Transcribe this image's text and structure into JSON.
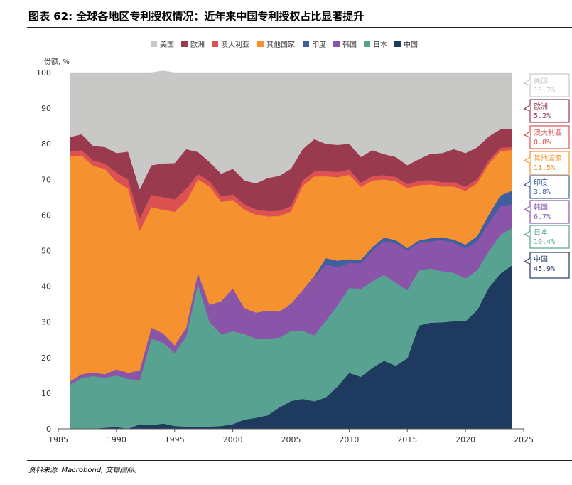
{
  "title": "图表 62: 全球各地区专利授权情况：近年来中国专利授权占比显著提升",
  "source": "资料来源: Macrobond, 交银国际。",
  "chart_data": {
    "type": "area",
    "stacked": true,
    "ylabel": "份额, %",
    "xlim": [
      1985,
      2025
    ],
    "ylim": [
      0,
      100
    ],
    "x_ticks": [
      "1985",
      "1990",
      "1995",
      "2000",
      "2005",
      "2010",
      "2015",
      "2020",
      "2025"
    ],
    "y_ticks": [
      "0",
      "10",
      "20",
      "30",
      "40",
      "50",
      "60",
      "70",
      "80",
      "90",
      "100"
    ],
    "legend_position": "top",
    "x": [
      1986,
      1987,
      1988,
      1989,
      1990,
      1991,
      1992,
      1993,
      1994,
      1995,
      1996,
      1997,
      1998,
      1999,
      2000,
      2001,
      2002,
      2003,
      2004,
      2005,
      2006,
      2007,
      2008,
      2009,
      2010,
      2011,
      2012,
      2013,
      2014,
      2015,
      2016,
      2017,
      2018,
      2019,
      2020,
      2021,
      2022,
      2023,
      2024
    ],
    "series": [
      {
        "name": "中国",
        "color": "#1f3a5f",
        "values": [
          0,
          0,
          0,
          0.3,
          0.5,
          0,
          1.3,
          1,
          1.5,
          0.8,
          0.6,
          0.5,
          0.6,
          0.8,
          1.3,
          2.6,
          3.1,
          3.8,
          6,
          7.8,
          8.4,
          7.7,
          8.8,
          11.9,
          15.7,
          14.6,
          17.1,
          19.1,
          17.7,
          19.8,
          29,
          29.8,
          29.9,
          30.2,
          30.2,
          33.3,
          39.6,
          43.6,
          45.9
        ]
      },
      {
        "name": "日本",
        "color": "#58a291",
        "values": [
          12.3,
          14.3,
          14.8,
          14,
          14.5,
          14,
          12.3,
          24.3,
          22.7,
          20.5,
          25.3,
          40.2,
          29.4,
          25.7,
          26.1,
          24,
          22.2,
          21.5,
          19.6,
          19.7,
          19.2,
          18.5,
          21.5,
          22.8,
          23.8,
          24.7,
          24.3,
          24.1,
          23.3,
          19.1,
          15.5,
          15.2,
          14.3,
          13.6,
          12,
          11.2,
          10.2,
          10.9,
          10.4
        ]
      },
      {
        "name": "韩国",
        "color": "#8a55a8",
        "values": [
          1,
          1,
          1,
          1,
          1.7,
          1.7,
          2.8,
          3.1,
          2.6,
          2.1,
          2.5,
          3,
          4.8,
          9.3,
          12,
          7.3,
          7.3,
          7.9,
          7.3,
          7.6,
          11.3,
          16.3,
          15.9,
          10.5,
          7.1,
          7.1,
          8.6,
          9.5,
          11,
          11.2,
          7.7,
          7.6,
          8.8,
          8.4,
          8.4,
          8,
          8,
          8,
          6.7
        ]
      },
      {
        "name": "印度",
        "color": "#3f5f9e",
        "values": [
          0,
          0,
          0,
          0,
          0,
          0,
          0,
          0,
          0,
          0,
          0,
          0,
          0,
          0,
          0,
          0,
          0,
          0,
          0,
          0,
          0,
          0.4,
          1.7,
          2,
          1,
          1,
          1,
          1,
          1,
          0.6,
          0.7,
          0.9,
          0.8,
          0.9,
          1.1,
          1.6,
          2.3,
          3,
          3.8
        ]
      },
      {
        "name": "其他国家",
        "color": "#f5922f",
        "values": [
          63.2,
          61.4,
          58,
          57.7,
          52.7,
          51.7,
          39.1,
          33.8,
          34.7,
          37.5,
          35.5,
          26.3,
          33.2,
          27.9,
          24.9,
          27.6,
          27.5,
          26.4,
          26.8,
          25.9,
          29.3,
          27.9,
          23,
          23.4,
          23.7,
          20.5,
          18.7,
          16.3,
          16.5,
          16.8,
          15.5,
          15.1,
          14.2,
          14.9,
          15.1,
          14.8,
          14.3,
          12.5,
          11.5
        ]
      },
      {
        "name": "澳大利亚",
        "color": "#dc5252",
        "values": [
          1.5,
          1.5,
          1.5,
          1.5,
          2.5,
          2.5,
          3.5,
          3.5,
          3.5,
          3.5,
          3.5,
          1.5,
          1.5,
          1.5,
          1.5,
          1.5,
          1.5,
          1.5,
          1.5,
          1.5,
          1.5,
          1.5,
          1.5,
          1.5,
          1.5,
          1.2,
          1.2,
          1.2,
          1.2,
          1.2,
          1.2,
          1.2,
          1.2,
          1.2,
          1.2,
          1.1,
          1,
          0.9,
          0.8
        ]
      },
      {
        "name": "欧洲",
        "color": "#9a3a4f",
        "values": [
          3.9,
          4.5,
          4.1,
          4.6,
          5.5,
          7.9,
          8.2,
          8.3,
          9.5,
          10.2,
          11.1,
          6.2,
          5.4,
          6.4,
          7.2,
          6.7,
          7.3,
          9.3,
          9.8,
          10.5,
          8.8,
          9,
          7.6,
          7.6,
          7.2,
          7.2,
          7.3,
          5.9,
          5.6,
          5.3,
          6.1,
          7.4,
          8.2,
          9.3,
          9.4,
          9,
          6.7,
          5.2,
          5.2
        ]
      },
      {
        "name": "美国",
        "color": "#c8c8c6",
        "values": [
          18.1,
          17.3,
          20.6,
          20.9,
          22.6,
          22.2,
          32.8,
          26,
          26,
          25.4,
          21.5,
          22.3,
          25.1,
          28.4,
          27,
          30.3,
          31.1,
          29.6,
          29,
          27,
          21.5,
          18.7,
          20,
          20.3,
          20,
          23.7,
          21.8,
          22.9,
          23.7,
          26,
          24.3,
          22.8,
          22.6,
          21.5,
          22.6,
          21,
          17.9,
          15.9,
          15.7
        ]
      }
    ],
    "end_labels": [
      {
        "name": "美国",
        "value": "15.7%",
        "color": "#c8c8c6",
        "fill": "#ffffff"
      },
      {
        "name": "欧洲",
        "value": "5.2%",
        "color": "#9a3a4f",
        "fill": "#ffffff"
      },
      {
        "name": "澳大利亚",
        "value": "0.8%",
        "color": "#dc5252",
        "fill": "#ffffff"
      },
      {
        "name": "其他国家",
        "value": "11.5%",
        "color": "#f5922f",
        "fill": "#ffffff"
      },
      {
        "name": "印度",
        "value": "3.8%",
        "color": "#3f5f9e",
        "fill": "#ffffff"
      },
      {
        "name": "韩国",
        "value": "6.7%",
        "color": "#8a55a8",
        "fill": "#ffffff"
      },
      {
        "name": "日本",
        "value": "10.4%",
        "color": "#58a291",
        "fill": "#ffffff"
      },
      {
        "name": "中国",
        "value": "45.9%",
        "color": "#1f3a5f",
        "fill": "#ffffff"
      }
    ],
    "legend": [
      "美国",
      "欧洲",
      "澳大利亚",
      "其他国家",
      "印度",
      "韩国",
      "日本",
      "中国"
    ]
  }
}
